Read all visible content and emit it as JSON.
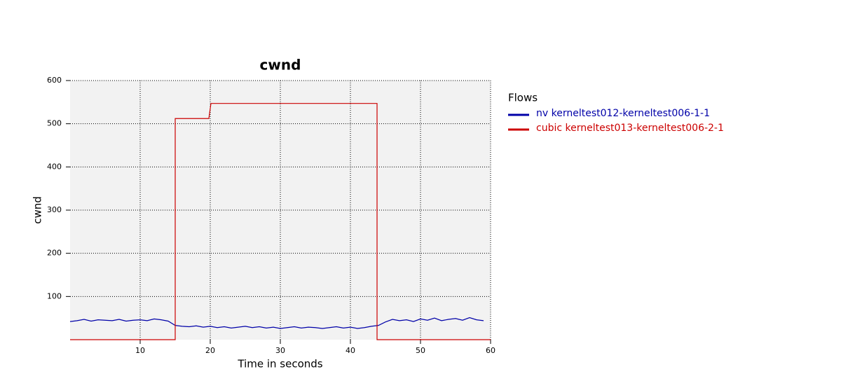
{
  "chart_data": {
    "type": "line",
    "title": "cwnd",
    "xlabel": "Time in seconds",
    "ylabel": "cwnd",
    "legend_title": "Flows",
    "legend": "right",
    "grid": true,
    "xlim": [
      0,
      60
    ],
    "xticks": [
      10,
      20,
      30,
      40,
      50,
      60
    ],
    "ylim": [
      0,
      600
    ],
    "yticks": [
      100,
      200,
      300,
      400,
      500,
      600
    ],
    "series": [
      {
        "name": "nv kerneltest012-kerneltest006-1-1",
        "color": "#0000a8",
        "x": [
          0,
          1,
          2,
          3,
          4,
          5,
          6,
          7,
          8,
          9,
          10,
          11,
          12,
          13,
          14,
          15,
          16,
          17,
          18,
          19,
          20,
          21,
          22,
          23,
          24,
          25,
          26,
          27,
          28,
          29,
          30,
          31,
          32,
          33,
          34,
          35,
          36,
          37,
          38,
          39,
          40,
          41,
          42,
          43,
          44,
          45,
          46,
          47,
          48,
          49,
          50,
          51,
          52,
          53,
          54,
          55,
          56,
          57,
          58,
          59
        ],
        "values": [
          42,
          44,
          47,
          43,
          46,
          45,
          44,
          47,
          43,
          45,
          46,
          44,
          48,
          46,
          43,
          33,
          31,
          30,
          32,
          29,
          31,
          28,
          30,
          27,
          29,
          31,
          28,
          30,
          27,
          29,
          26,
          28,
          30,
          27,
          29,
          28,
          26,
          28,
          30,
          27,
          29,
          26,
          28,
          31,
          33,
          41,
          47,
          44,
          46,
          42,
          48,
          45,
          50,
          44,
          47,
          49,
          45,
          51,
          46,
          44
        ]
      },
      {
        "name": "cubic kerneltest013-kerneltest006-2-1",
        "color": "#cc0000",
        "x": [
          0,
          15,
          15,
          19.8,
          20.1,
          43.8,
          43.8,
          60
        ],
        "values": [
          0,
          0,
          512,
          512,
          547,
          547,
          0,
          0
        ]
      }
    ]
  }
}
